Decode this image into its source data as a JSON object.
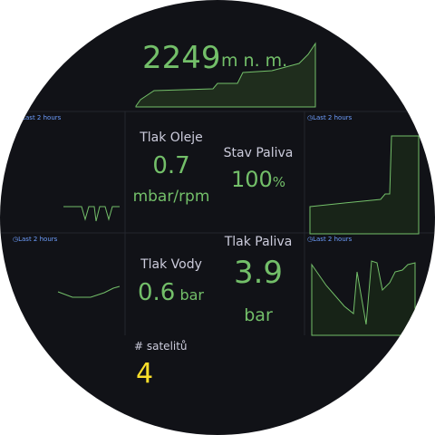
{
  "altitude": {
    "value": 2249,
    "unit": "m n. m."
  },
  "time_labels": [
    "Last 2 hours",
    "Last 2 hours",
    "Last 2 hours",
    "Last 2 hours"
  ],
  "oil_pressure": {
    "title": "Tlak Oleje",
    "value": 0.7,
    "unit": "mbar/rpm"
  },
  "fuel_level": {
    "title": "Stav Paliva",
    "value": 100,
    "unit": "%"
  },
  "water_pressure": {
    "title": "Tlak Vody",
    "value": 0.6,
    "unit": "bar"
  },
  "fuel_pressure": {
    "title": "Tlak Paliva",
    "value": 3.9,
    "unit": "bar"
  },
  "satellites": {
    "title": "# satelitů",
    "value": 4
  }
}
